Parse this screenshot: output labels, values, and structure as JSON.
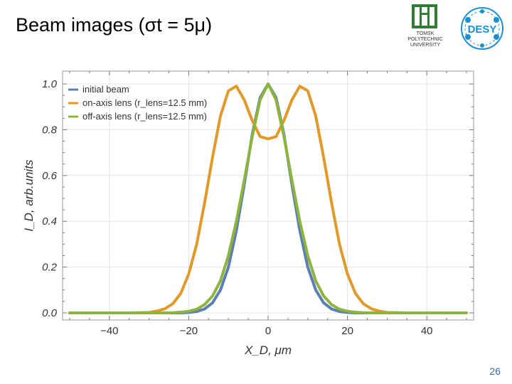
{
  "slide": {
    "title": "Beam images (σt = 5μ)",
    "page_number": "26"
  },
  "logos": {
    "tpu": {
      "name": "tpu-logo-icon",
      "lines": [
        "TOMSK",
        "POLYTECHNIC",
        "UNIVERSITY"
      ],
      "color": "#2e7d32"
    },
    "desy": {
      "name": "desy-logo-icon",
      "text": "DESY",
      "color": "#1b8fd3"
    }
  },
  "chart_data": {
    "type": "line",
    "xlabel": "X_D, μm",
    "ylabel": "I_D, arb.units",
    "xlim": [
      -50,
      50
    ],
    "ylim": [
      0,
      1.0
    ],
    "xticks": [
      -40,
      -20,
      0,
      20,
      40
    ],
    "xtick_labels": [
      "−40",
      "−20",
      "0",
      "20",
      "40"
    ],
    "yticks": [
      0.0,
      0.2,
      0.4,
      0.6,
      0.8,
      1.0
    ],
    "ytick_labels": [
      "0.0",
      "0.2",
      "0.4",
      "0.6",
      "0.8",
      "1.0"
    ],
    "grid": true,
    "legend_position": "top-left",
    "x": [
      -50,
      -45,
      -40,
      -35,
      -30,
      -28,
      -26,
      -24,
      -22,
      -20,
      -18,
      -16,
      -14,
      -12,
      -10,
      -8,
      -6,
      -4,
      -2,
      0,
      2,
      4,
      6,
      8,
      10,
      12,
      14,
      16,
      18,
      20,
      22,
      24,
      26,
      28,
      30,
      35,
      40,
      45,
      50
    ],
    "series": [
      {
        "name": "initial beam",
        "color": "#5b7fb5",
        "values": [
          0,
          0,
          0,
          0,
          0,
          0,
          0,
          0,
          0,
          0.002,
          0.006,
          0.017,
          0.044,
          0.1,
          0.2,
          0.36,
          0.56,
          0.78,
          0.94,
          1.0,
          0.94,
          0.78,
          0.56,
          0.36,
          0.2,
          0.1,
          0.044,
          0.017,
          0.006,
          0.002,
          0,
          0,
          0,
          0,
          0,
          0,
          0,
          0,
          0
        ]
      },
      {
        "name": "on-axis lens (r_lens=12.5 mm)",
        "color": "#e09a2a",
        "values": [
          0,
          0,
          0,
          0,
          0.002,
          0.008,
          0.018,
          0.04,
          0.085,
          0.17,
          0.3,
          0.48,
          0.68,
          0.86,
          0.97,
          0.99,
          0.93,
          0.84,
          0.77,
          0.76,
          0.77,
          0.84,
          0.93,
          0.99,
          0.97,
          0.86,
          0.68,
          0.48,
          0.3,
          0.17,
          0.085,
          0.04,
          0.018,
          0.008,
          0.002,
          0,
          0,
          0,
          0
        ]
      },
      {
        "name": "off-axis lens (r_lens=12.5 mm)",
        "color": "#8db53d",
        "values": [
          0,
          0,
          0,
          0,
          0,
          0,
          0,
          0.001,
          0.003,
          0.007,
          0.016,
          0.036,
          0.074,
          0.14,
          0.25,
          0.4,
          0.58,
          0.77,
          0.93,
          1.0,
          0.93,
          0.77,
          0.58,
          0.4,
          0.25,
          0.14,
          0.074,
          0.036,
          0.016,
          0.007,
          0.003,
          0.001,
          0,
          0,
          0,
          0,
          0,
          0,
          0
        ]
      }
    ]
  }
}
